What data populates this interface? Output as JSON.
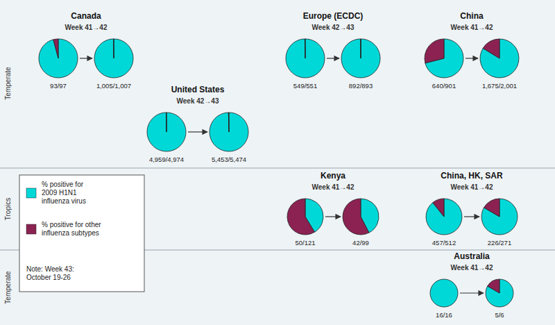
{
  "chart_data": {
    "type": "pie",
    "categories": [
      "% positive for\n2009 H1N1\ninfluenza virus",
      "% positive for other\ninfluenza subtypes"
    ],
    "colors": [
      "#00d8d8",
      "#8b2252"
    ],
    "legend": "lower left",
    "note": "Note: Week 43:\nOctober 19-26",
    "zone_labels": [
      "Temperate",
      "Tropics",
      "Temperate"
    ],
    "groups": [
      {
        "title": "Canada",
        "subtitle": "Week 41→42",
        "series": [
          {
            "name": "93/97",
            "values": [
              93,
              4
            ]
          },
          {
            "name": "1,005/1,007",
            "values": [
              1005,
              2
            ]
          }
        ]
      },
      {
        "title": "United States",
        "subtitle": "Week 42→43",
        "series": [
          {
            "name": "4,959/4,974",
            "values": [
              4959,
              15
            ]
          },
          {
            "name": "5,453/5,474",
            "values": [
              5453,
              21
            ]
          }
        ]
      },
      {
        "title": "Europe (ECDC)",
        "subtitle": "Week 42→43",
        "series": [
          {
            "name": "549/551",
            "values": [
              549,
              2
            ]
          },
          {
            "name": "892/893",
            "values": [
              892,
              1
            ]
          }
        ]
      },
      {
        "title": "China",
        "subtitle": "Week 41→42",
        "series": [
          {
            "name": "640/901",
            "values": [
              640,
              261
            ]
          },
          {
            "name": "1,675/2,001",
            "values": [
              1675,
              326
            ]
          }
        ]
      },
      {
        "title": "China, HK, SAR",
        "subtitle": "Week 41→42",
        "series": [
          {
            "name": "457/512",
            "values": [
              457,
              55
            ]
          },
          {
            "name": "226/271",
            "values": [
              226,
              45
            ]
          }
        ]
      },
      {
        "title": "Kenya",
        "subtitle": "Week 41→42",
        "series": [
          {
            "name": "50/121",
            "values": [
              50,
              71
            ]
          },
          {
            "name": "42/99",
            "values": [
              42,
              57
            ]
          }
        ]
      },
      {
        "title": "Australia",
        "subtitle": "Week 41→42",
        "series": [
          {
            "name": "16/16",
            "values": [
              16,
              0
            ]
          },
          {
            "name": "5/6",
            "values": [
              5,
              1
            ]
          }
        ]
      }
    ]
  }
}
